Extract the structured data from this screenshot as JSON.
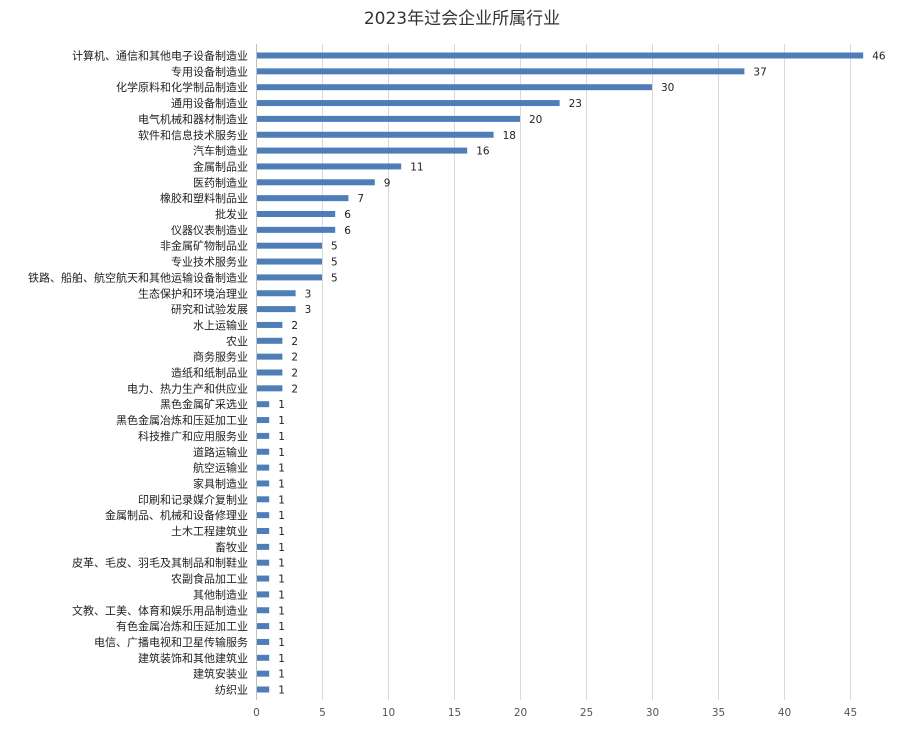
{
  "chart_data": {
    "type": "bar",
    "orientation": "horizontal",
    "title": "2023年过会企业所属行业",
    "categories": [
      "计算机、通信和其他电子设备制造业",
      "专用设备制造业",
      "化学原料和化学制品制造业",
      "通用设备制造业",
      "电气机械和器材制造业",
      "软件和信息技术服务业",
      "汽车制造业",
      "金属制品业",
      "医药制造业",
      "橡胶和塑料制品业",
      "批发业",
      "仪器仪表制造业",
      "非金属矿物制品业",
      "专业技术服务业",
      "铁路、船舶、航空航天和其他运输设备制造业",
      "生态保护和环境治理业",
      "研究和试验发展",
      "水上运输业",
      "农业",
      "商务服务业",
      "造纸和纸制品业",
      "电力、热力生产和供应业",
      "黑色金属矿采选业",
      "黑色金属冶炼和压延加工业",
      "科技推广和应用服务业",
      "道路运输业",
      "航空运输业",
      "家具制造业",
      "印刷和记录媒介复制业",
      "金属制品、机械和设备修理业",
      "土木工程建筑业",
      "畜牧业",
      "皮革、毛皮、羽毛及其制品和制鞋业",
      "农副食品加工业",
      "其他制造业",
      "文教、工美、体育和娱乐用品制造业",
      "有色金属冶炼和压延加工业",
      "电信、广播电视和卫星传输服务",
      "建筑装饰和其他建筑业",
      "建筑安装业",
      "纺织业"
    ],
    "values": [
      46,
      37,
      30,
      23,
      20,
      18,
      16,
      11,
      9,
      7,
      6,
      6,
      5,
      5,
      5,
      3,
      3,
      2,
      2,
      2,
      2,
      2,
      1,
      1,
      1,
      1,
      1,
      1,
      1,
      1,
      1,
      1,
      1,
      1,
      1,
      1,
      1,
      1,
      1,
      1,
      1
    ],
    "xlim": [
      0,
      45
    ],
    "xticks": [
      0,
      5,
      10,
      15,
      20,
      25,
      30,
      35,
      40,
      45
    ],
    "grid": true,
    "legend": "none",
    "data_labels": true,
    "bar_color": "#4f7db8"
  }
}
